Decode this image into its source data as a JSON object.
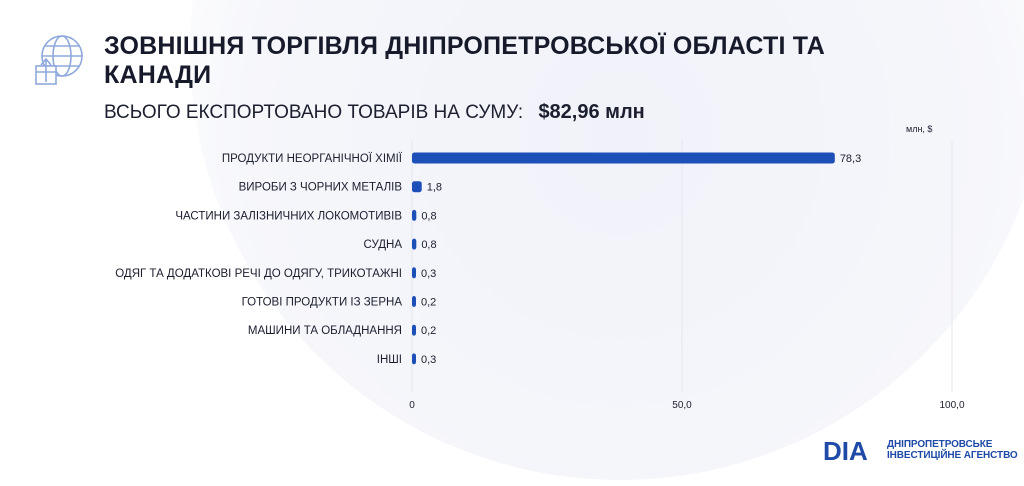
{
  "header": {
    "icon": "globe-export-icon",
    "title": "ЗОВНІШНЯ ТОРГІВЛЯ ДНІПРОПЕТРОВСЬКОЇ ОБЛАСТІ ТА КАНАДИ",
    "subtitle_label": "ВСЬОГО ЕКСПОРТОВАНО ТОВАРІВ НА СУМУ:",
    "subtitle_amount": "$82,96 млн"
  },
  "chart_data": {
    "type": "bar",
    "orientation": "horizontal",
    "units_label": "млн, $",
    "categories": [
      "ПРОДУКТИ НЕОРГАНІЧНОЇ ХІМІЇ",
      "ВИРОБИ З ЧОРНИХ МЕТАЛІВ",
      "ЧАСТИНИ ЗАЛІЗНИЧНИХ ЛОКОМОТИВІВ",
      "СУДНА",
      "ОДЯГ ТА ДОДАТКОВІ РЕЧІ ДО ОДЯГУ, ТРИКОТАЖНІ",
      "ГОТОВІ ПРОДУКТИ ІЗ ЗЕРНА",
      "МАШИНИ ТА ОБЛАДНАННЯ",
      "ІНШІ"
    ],
    "values": [
      78.3,
      1.8,
      0.8,
      0.8,
      0.3,
      0.2,
      0.2,
      0.3
    ],
    "value_labels": [
      "78,3",
      "1,8",
      "0,8",
      "0,8",
      "0,3",
      "0,2",
      "0,2",
      "0,3"
    ],
    "xlim": [
      0,
      100
    ],
    "x_ticks": [
      0,
      50,
      100
    ],
    "x_tick_labels": [
      "0",
      "50,0",
      "100,0"
    ],
    "grid": true,
    "bar_color": "#1d4fb8"
  },
  "logo": {
    "mark": "DIA",
    "line1": "ДНІПРОПЕТРОВСЬКЕ",
    "line2": "ІНВЕСТИЦІЙНЕ АГЕНСТВО",
    "color": "#1f4aa8"
  }
}
